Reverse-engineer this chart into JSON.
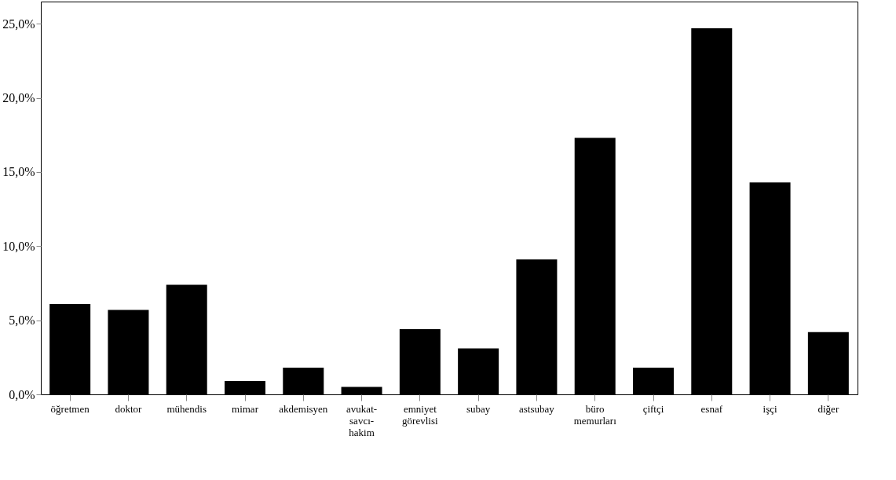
{
  "chart_data": {
    "type": "bar",
    "categories": [
      "öğretmen",
      "doktor",
      "mühendis",
      "mimar",
      "akdemisyen",
      "avukat-savcı-hakim",
      "emniyet görevlisi",
      "subay",
      "astsubay",
      "büro memurları",
      "çiftçi",
      "esnaf",
      "işçi",
      "diğer"
    ],
    "values": [
      6.1,
      5.7,
      7.4,
      0.9,
      1.8,
      0.5,
      4.4,
      3.1,
      9.1,
      17.3,
      1.8,
      24.7,
      14.3,
      4.2
    ],
    "color": "#000000",
    "ylim": [
      0,
      26.5
    ],
    "yticks": [
      {
        "value": 0,
        "label": "0,0%"
      },
      {
        "value": 5,
        "label": "5,0%"
      },
      {
        "value": 10,
        "label": "10,0%"
      },
      {
        "value": 15,
        "label": "15,0%"
      },
      {
        "value": 20,
        "label": "20,0%"
      },
      {
        "value": 25,
        "label": "25,0%"
      }
    ],
    "grid": false
  }
}
